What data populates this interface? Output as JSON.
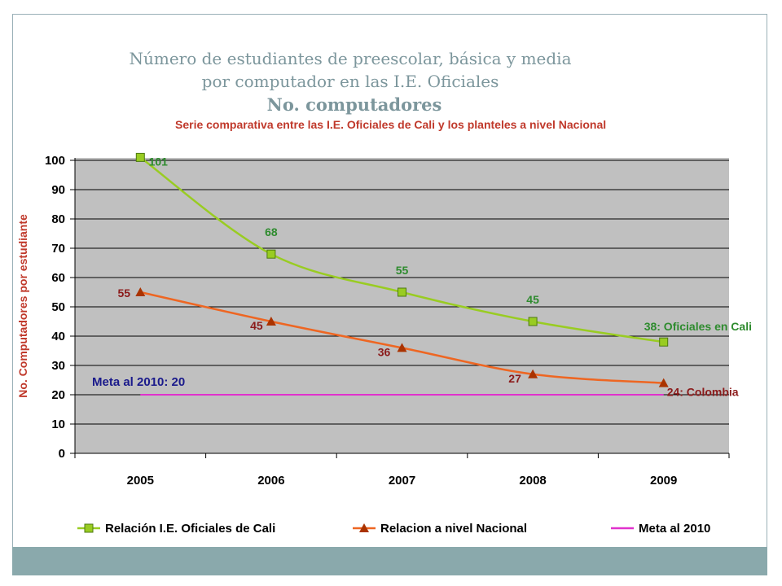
{
  "header": {
    "title_line1": "Número de estudiantes de preescolar, básica y media",
    "title_line2": "por computador en las I.E. Oficiales",
    "title_line3": "No. computadores"
  },
  "chart_data": {
    "type": "line",
    "subtitle": "Serie comparativa entre las I.E. Oficiales de Cali y los planteles a nivel Nacional",
    "ylabel": "No. Computadores por estudiante",
    "xlabel": "",
    "categories": [
      "2005",
      "2006",
      "2007",
      "2008",
      "2009"
    ],
    "ylim": [
      0,
      100
    ],
    "yticks": [
      0,
      10,
      20,
      30,
      40,
      50,
      60,
      70,
      80,
      90,
      100
    ],
    "grid": true,
    "legend_position": "bottom",
    "series": [
      {
        "name": "Relación I.E. Oficiales de Cali",
        "values": [
          101,
          68,
          55,
          45,
          38
        ],
        "labels": [
          "101",
          "68",
          "55",
          "45",
          "38: Oficiales en Cali"
        ],
        "color": "#99cc22",
        "label_color": "#2e8b2e",
        "marker": "square"
      },
      {
        "name": "Relacion a nivel Nacional",
        "values": [
          55,
          45,
          36,
          27,
          24
        ],
        "labels": [
          "55",
          "45",
          "36",
          "27",
          "24: Colombia"
        ],
        "color": "#ee6622",
        "label_color": "#8b1a1a",
        "marker": "triangle"
      },
      {
        "name": "Meta al 2010",
        "values": [
          20,
          20,
          20,
          20,
          20
        ],
        "color": "#e032cc",
        "marker": "none"
      }
    ],
    "annotation": "Meta al 2010:  20",
    "plot_background": "#c0c0c0"
  }
}
